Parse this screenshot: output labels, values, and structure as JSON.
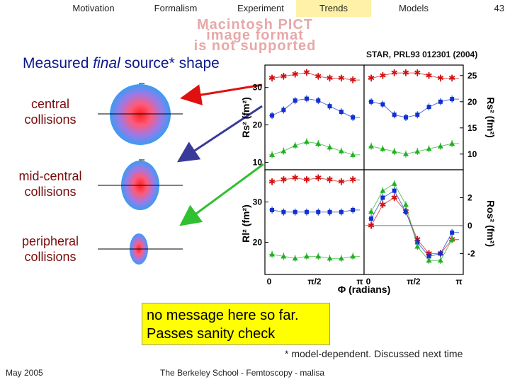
{
  "nav": {
    "tabs": [
      {
        "label": "Motivation",
        "active": false
      },
      {
        "label": "Formalism",
        "active": false
      },
      {
        "label": "Experiment",
        "active": false
      },
      {
        "label": "Trends",
        "active": true
      },
      {
        "label": "Models",
        "active": false
      }
    ],
    "page_number": "43"
  },
  "pict_placeholder": {
    "line1": "Macintosh PICT",
    "line2": "image format",
    "line3": "is not supported"
  },
  "slide": {
    "title_prefix": "Measured ",
    "title_italic": "final",
    "title_suffix": " source* shape",
    "labels": {
      "central": [
        "central",
        "collisions"
      ],
      "mid_central": [
        "mid-central",
        "collisions"
      ],
      "peripheral": [
        "peripheral",
        "collisions"
      ]
    },
    "citation": "STAR, PRL93 012301 (2004)",
    "message_line1": "no message here so far.",
    "message_line2": "Passes sanity check",
    "footnote": "* model-dependent.  Discussed next time",
    "colors": {
      "title": "#0a1a8c",
      "labels": "#7a0a0a",
      "message_bg": "#ffff00",
      "active_tab": "#fff2a8"
    }
  },
  "footer": {
    "date": "May 2005",
    "center": "The Berkeley School - Femtoscopy - malisa"
  },
  "chart_data": {
    "type": "scatter",
    "xlabel": "Φ (radians)",
    "x_ticks": [
      "0",
      "π/2",
      "π"
    ],
    "panels": [
      {
        "name": "Rs2",
        "ylabel": "Rs² (fm²)",
        "y_ticks": [
          10,
          20,
          30
        ],
        "series": [
          {
            "color": "#d01010",
            "marker": "star",
            "x": [
              0.1,
              0.5,
              0.9,
              1.3,
              1.7,
              2.1,
              2.5,
              2.9
            ],
            "y": [
              32.5,
              33,
              33.5,
              34,
              33,
              32.5,
              32.5,
              32
            ]
          },
          {
            "color": "#1030d0",
            "marker": "square",
            "x": [
              0.1,
              0.5,
              0.9,
              1.3,
              1.7,
              2.1,
              2.5,
              2.9
            ],
            "y": [
              22.5,
              24,
              26.5,
              27,
              26.5,
              25,
              23.5,
              22
            ]
          },
          {
            "color": "#20b020",
            "marker": "triangle",
            "x": [
              0.1,
              0.5,
              0.9,
              1.3,
              1.7,
              2.1,
              2.5,
              2.9
            ],
            "y": [
              12,
              13,
              14.5,
              15.5,
              15,
              14,
              13,
              12
            ]
          }
        ]
      },
      {
        "name": "Rs2_right",
        "ylabel": "Rs² (fm²)",
        "y_ticks": [
          10,
          15,
          20,
          25
        ],
        "series": [
          {
            "color": "#d01010",
            "marker": "star",
            "x": [
              0.1,
              0.5,
              0.9,
              1.3,
              1.7,
              2.1,
              2.5,
              2.9
            ],
            "y": [
              24.5,
              25,
              25.5,
              25.5,
              25.5,
              25,
              24.5,
              24.5
            ]
          },
          {
            "color": "#1030d0",
            "marker": "square",
            "x": [
              0.1,
              0.5,
              0.9,
              1.3,
              1.7,
              2.1,
              2.5,
              2.9
            ],
            "y": [
              20,
              19.5,
              17.5,
              17,
              17.5,
              19,
              20,
              20.5
            ]
          },
          {
            "color": "#20b020",
            "marker": "triangle",
            "x": [
              0.1,
              0.5,
              0.9,
              1.3,
              1.7,
              2.1,
              2.5,
              2.9
            ],
            "y": [
              11.5,
              11,
              10.5,
              10,
              10.5,
              11,
              11.5,
              12
            ]
          }
        ]
      },
      {
        "name": "Rl2",
        "ylabel": "Rl² (fm²)",
        "y_ticks": [
          20,
          30
        ],
        "series": [
          {
            "color": "#d01010",
            "marker": "star",
            "x": [
              0.1,
              0.5,
              0.9,
              1.3,
              1.7,
              2.1,
              2.5,
              2.9
            ],
            "y": [
              35,
              35.5,
              36,
              35.5,
              36,
              35.5,
              35,
              35.5
            ]
          },
          {
            "color": "#1030d0",
            "marker": "square",
            "x": [
              0.1,
              0.5,
              0.9,
              1.3,
              1.7,
              2.1,
              2.5,
              2.9
            ],
            "y": [
              28,
              27.5,
              27.5,
              27.5,
              27.5,
              27.5,
              27.5,
              28
            ]
          },
          {
            "color": "#20b020",
            "marker": "triangle",
            "x": [
              0.1,
              0.5,
              0.9,
              1.3,
              1.7,
              2.1,
              2.5,
              2.9
            ],
            "y": [
              17,
              16.5,
              16,
              16.5,
              16.5,
              16,
              16,
              16.5
            ]
          }
        ]
      },
      {
        "name": "Ros2",
        "ylabel": "Ros² (fm²)",
        "y_ticks": [
          -2,
          0,
          2
        ],
        "series": [
          {
            "color": "#d01010",
            "marker": "star",
            "x": [
              0.1,
              0.5,
              0.9,
              1.3,
              1.7,
              2.1,
              2.5,
              2.9
            ],
            "y": [
              0,
              1.5,
              2,
              1,
              -1,
              -2,
              -2,
              -1
            ]
          },
          {
            "color": "#1030d0",
            "marker": "square",
            "x": [
              0.1,
              0.5,
              0.9,
              1.3,
              1.7,
              2.1,
              2.5,
              2.9
            ],
            "y": [
              0.5,
              2,
              2.5,
              1,
              -1.2,
              -2.2,
              -2,
              -0.5
            ]
          },
          {
            "color": "#20b020",
            "marker": "triangle",
            "x": [
              0.1,
              0.5,
              0.9,
              1.3,
              1.7,
              2.1,
              2.5,
              2.9
            ],
            "y": [
              1,
              2.5,
              3,
              1.5,
              -1.5,
              -2.5,
              -2.5,
              -1
            ]
          }
        ]
      }
    ]
  }
}
